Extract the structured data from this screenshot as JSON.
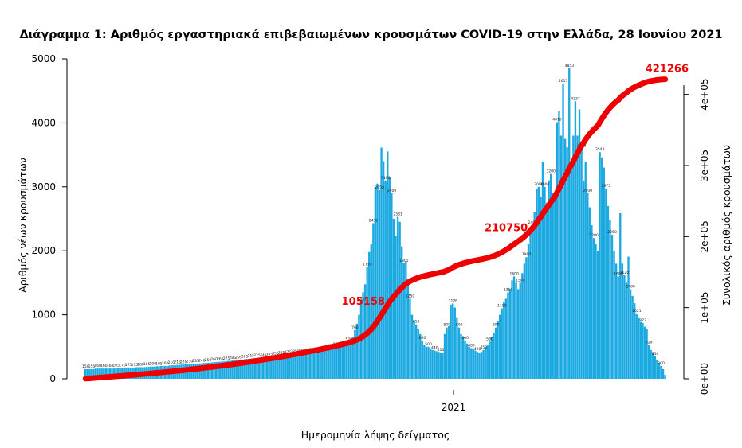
{
  "chart_data": {
    "type": "bar",
    "title": "Διάγραμμα 1: Αριθμός εργαστηριακά επιβεβαιωμένων κρουσμάτων COVID-19 στην Ελλάδα, 28 Ιουνίου 2021",
    "xlabel": "Ημερομηνία λήψης δείγματος",
    "ylabel": "Αριθμός νέων κρουσμάτων",
    "y2label": "Συνολικός αριθμός κρουσμάτων",
    "x_tick_labels": [
      "2021"
    ],
    "y_ticks": [
      "0",
      "1000",
      "2000",
      "3000",
      "4000",
      "5000"
    ],
    "y2_ticks": [
      "0e+00",
      "1e+05",
      "2e+05",
      "3e+05",
      "4e+05"
    ],
    "ylim": [
      0,
      5000
    ],
    "y2lim": [
      0,
      450000
    ],
    "grid": false,
    "bar_color": "#1ba9e1",
    "line_color": "#ee0000",
    "series": [
      {
        "name": "",
        "type": "bar",
        "axis": "left",
        "values": [
          150,
          150,
          150,
          150,
          150,
          160,
          160,
          160,
          160,
          160,
          160,
          160,
          160,
          160,
          160,
          165,
          165,
          170,
          170,
          170,
          175,
          175,
          175,
          175,
          175,
          180,
          180,
          180,
          180,
          180,
          185,
          185,
          190,
          190,
          190,
          195,
          195,
          200,
          200,
          200,
          200,
          205,
          210,
          210,
          210,
          215,
          215,
          220,
          220,
          225,
          225,
          230,
          230,
          230,
          235,
          235,
          240,
          240,
          245,
          245,
          250,
          250,
          255,
          260,
          260,
          265,
          265,
          270,
          270,
          275,
          280,
          280,
          285,
          290,
          290,
          295,
          300,
          300,
          305,
          310,
          310,
          315,
          320,
          320,
          325,
          330,
          330,
          335,
          340,
          340,
          345,
          350,
          350,
          355,
          360,
          360,
          365,
          370,
          370,
          375,
          380,
          380,
          385,
          390,
          390,
          395,
          400,
          400,
          405,
          410,
          410,
          415,
          420,
          420,
          425,
          430,
          430,
          440,
          450,
          460,
          470,
          480,
          490,
          500,
          510,
          520,
          530,
          540,
          550,
          570,
          590,
          650,
          760,
          860,
          1000,
          1200,
          1350,
          1475,
          1750,
          1980,
          2100,
          2432,
          3000,
          3050,
          2950,
          3613,
          3400,
          3100,
          3553,
          3150,
          2900,
          2500,
          2231,
          2531,
          2453,
          2070,
          1805,
          1836,
          1550,
          1250,
          1000,
          900,
          850,
          780,
          700,
          600,
          530,
          500,
          500,
          460,
          450,
          440,
          430,
          420,
          410,
          400,
          700,
          800,
          820,
          1159,
          1176,
          1113,
          950,
          800,
          700,
          650,
          600,
          550,
          500,
          480,
          460,
          440,
          420,
          400,
          420,
          450,
          500,
          520,
          580,
          650,
          720,
          800,
          900,
          1000,
          1100,
          1200,
          1250,
          1350,
          1401,
          1538,
          1600,
          1500,
          1400,
          1500,
          1650,
          1800,
          1900,
          2100,
          2269,
          2400,
          2600,
          2973,
          3000,
          2850,
          3390,
          3000,
          2750,
          3100,
          3200,
          2900,
          2862,
          4010,
          4186,
          3800,
          4615,
          3750,
          3617,
          4853,
          3400,
          3800,
          4337,
          3800,
          4209,
          3600,
          3100,
          3390,
          2900,
          2680,
          2400,
          2200,
          2100,
          2000,
          3543,
          3460,
          3300,
          2975,
          2700,
          2480,
          2250,
          2000,
          1800,
          1600,
          2588,
          1800,
          1620,
          1500,
          1908,
          1400,
          1296,
          1180,
          1021,
          950,
          888,
          873,
          813,
          774,
          529,
          450,
          400,
          350,
          300,
          250,
          200,
          150,
          60
        ]
      },
      {
        "name": "",
        "type": "line",
        "axis": "right",
        "annotated_values": [
          {
            "label": "105158",
            "value": 105158
          },
          {
            "label": "210750",
            "value": 210750
          },
          {
            "label": "421266",
            "value": 421266
          }
        ]
      }
    ]
  }
}
